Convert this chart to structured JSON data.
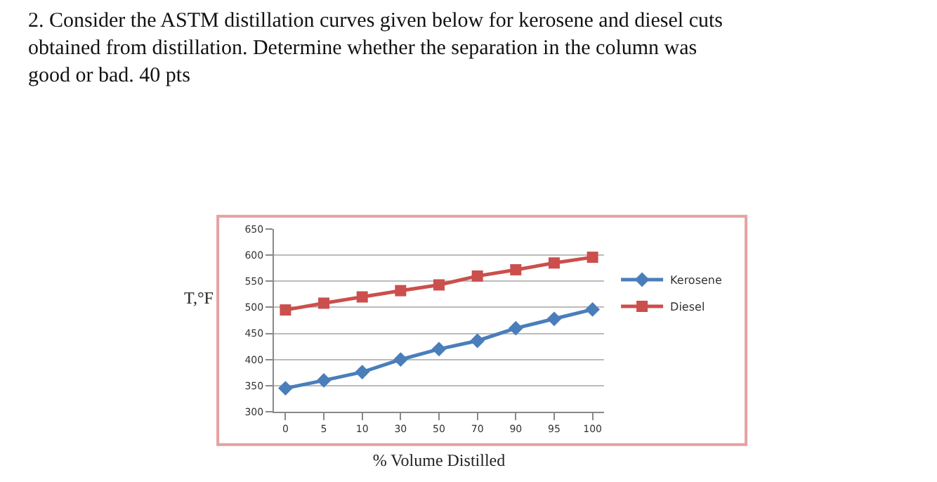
{
  "chart_data": {
    "type": "line",
    "title": "2. Consider the ASTM distillation curves given below for kerosene and diesel cuts\nobtained from distillation. Determine whether the separation in the column was\ngood or bad. 40 pts",
    "xlabel": "% Volume Distilled",
    "ylabel": "T,°F",
    "categories": [
      "0",
      "5",
      "10",
      "30",
      "50",
      "70",
      "90",
      "95",
      "100"
    ],
    "series": [
      {
        "name": "Kerosene",
        "color": "#4a7ebb",
        "marker": "diamond",
        "values": [
          345,
          360,
          376,
          400,
          420,
          436,
          460,
          478,
          496
        ]
      },
      {
        "name": "Diesel",
        "color": "#cb4f4c",
        "marker": "square",
        "values": [
          495,
          508,
          520,
          532,
          543,
          560,
          572,
          585,
          596
        ]
      }
    ],
    "ylim": [
      300,
      650
    ],
    "yticks": [
      300,
      350,
      400,
      450,
      500,
      550,
      600,
      650
    ],
    "grid": "y",
    "legend": "right",
    "line_style": "solid"
  }
}
